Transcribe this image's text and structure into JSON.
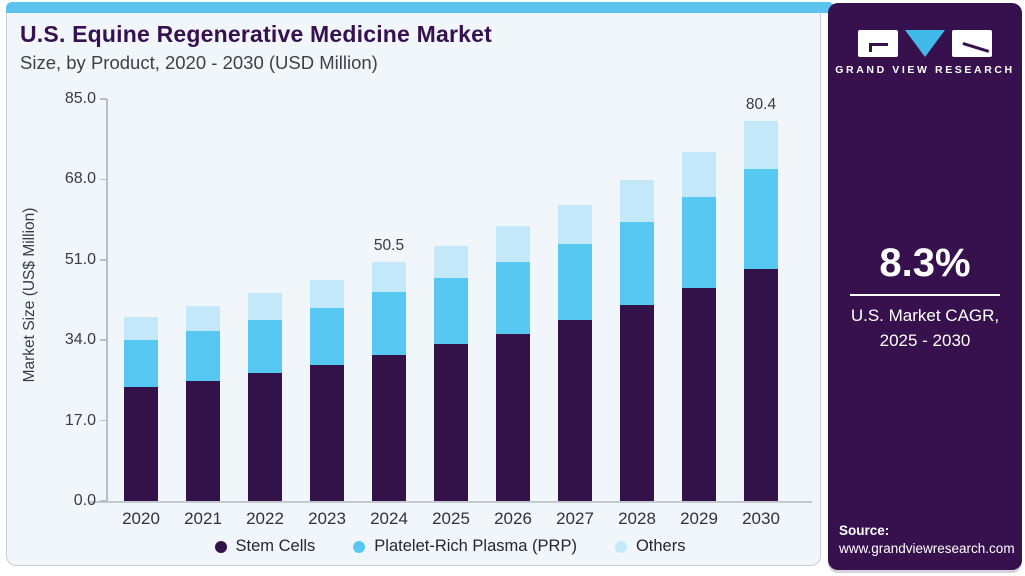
{
  "header": {
    "title": "U.S. Equine Regenerative Medicine Market",
    "subtitle": "Size, by Product, 2020 - 2030 (USD Million)"
  },
  "chart_data": {
    "type": "bar",
    "stacked": true,
    "title": "U.S. Equine Regenerative Medicine Market Size, by Product, 2020 - 2030 (USD Million)",
    "ylabel": "Market Size (US$ Million)",
    "xlabel": "",
    "ylim": [
      0,
      85
    ],
    "grid": false,
    "legend_position": "bottom",
    "categories": [
      "2020",
      "2021",
      "2022",
      "2023",
      "2024",
      "2025",
      "2026",
      "2027",
      "2028",
      "2029",
      "2030"
    ],
    "series": [
      {
        "name": "Stem Cells",
        "color": "#331249",
        "values": [
          24.0,
          25.4,
          27.0,
          28.8,
          30.9,
          33.1,
          35.4,
          38.3,
          41.5,
          45.1,
          49.1
        ]
      },
      {
        "name": "Platelet-Rich Plasma (PRP)",
        "color": "#57c8f1",
        "values": [
          10.0,
          10.6,
          11.3,
          12.1,
          13.2,
          14.0,
          15.1,
          16.1,
          17.5,
          19.2,
          21.0
        ]
      },
      {
        "name": "Others",
        "color": "#c2e8f9",
        "values": [
          5.0,
          5.3,
          5.6,
          5.9,
          6.4,
          6.9,
          7.6,
          8.1,
          8.8,
          9.4,
          10.3
        ]
      }
    ],
    "totals": [
      39.0,
      41.3,
      43.9,
      46.8,
      50.5,
      54.0,
      58.1,
      62.5,
      67.8,
      73.7,
      80.4
    ],
    "ytick_labels": [
      "0.0",
      "17.0",
      "34.0",
      "51.0",
      "68.0",
      "85.0"
    ],
    "yticks": [
      0,
      17,
      34,
      51,
      68,
      85
    ],
    "point_labels": [
      {
        "category": "2024",
        "label": "50.5"
      },
      {
        "category": "2030",
        "label": "80.4"
      }
    ]
  },
  "sidebar": {
    "logo_text": "GRAND VIEW RESEARCH",
    "cagr_value": "8.3%",
    "cagr_line1": "U.S. Market CAGR,",
    "cagr_line2": "2025 - 2030",
    "source_label": "Source:",
    "source_url": "www.grandviewresearch.com"
  },
  "colors": {
    "accent_strip": "#5cc3ee",
    "card_background": "#f1f6fa",
    "card_border": "#c9ced6",
    "title_text": "#36104f",
    "subtitle_text": "#3f3f46",
    "axis_text": "#3a3a42",
    "sidebar_background": "#37114d",
    "logo_triangle": "#41b9e9"
  }
}
